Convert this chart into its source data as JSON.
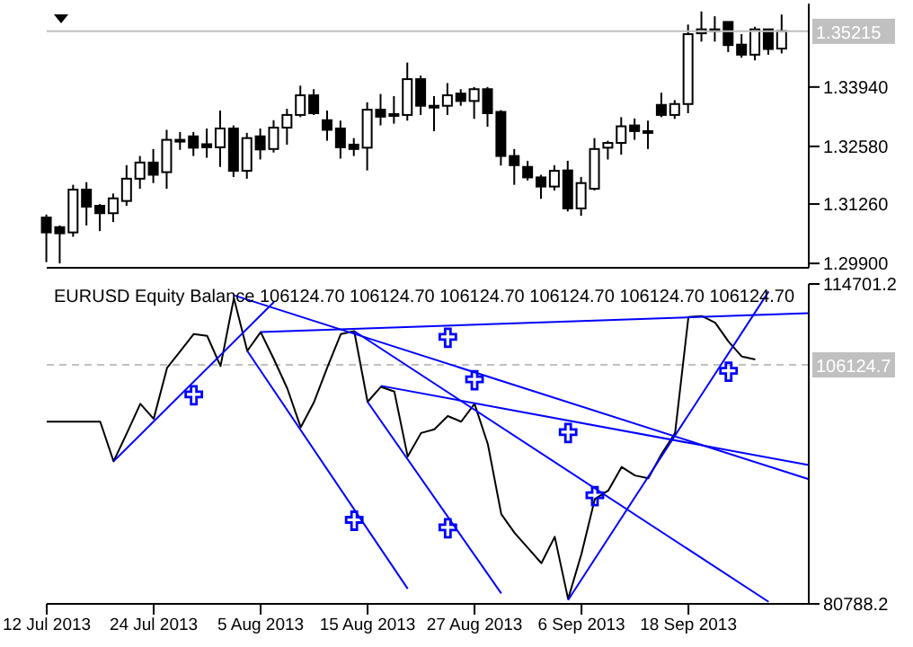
{
  "chart_data": [
    {
      "type": "candlestick",
      "color": "#000000",
      "tick_labels": "y",
      "ylim": [
        1.298,
        1.3585
      ],
      "yticks": [
        {
          "value": 1.299,
          "label": "1.29900"
        },
        {
          "value": 1.3126,
          "label": "1.31260"
        },
        {
          "value": 1.3258,
          "label": "1.32580"
        },
        {
          "value": 1.3394,
          "label": "1.33940"
        }
      ],
      "ref_lines": [
        {
          "axis": "y",
          "value": 1.35215,
          "label": "1.35215",
          "color": "#c0c0c0"
        }
      ],
      "categories": [
        null,
        null,
        null,
        null,
        null,
        null,
        null,
        null,
        null,
        null,
        null,
        null,
        null,
        null,
        null,
        null,
        null,
        null,
        null,
        null,
        null,
        null,
        null,
        null,
        null,
        null,
        null,
        null,
        null,
        null,
        null,
        null,
        null,
        null,
        null,
        null,
        null,
        null,
        null,
        null,
        null,
        null,
        null,
        null,
        null,
        null,
        null,
        null,
        null,
        null,
        null,
        null,
        null,
        null,
        null,
        null,
        null,
        null
      ],
      "ohlc": [
        [
          1.3095,
          1.3102,
          1.2993,
          1.3061
        ],
        [
          1.3073,
          1.3077,
          1.299,
          1.3059
        ],
        [
          1.3061,
          1.317,
          1.3051,
          1.3159
        ],
        [
          1.3159,
          1.3176,
          1.3077,
          1.312
        ],
        [
          1.3122,
          1.3126,
          1.3064,
          1.3105
        ],
        [
          1.3105,
          1.315,
          1.3085,
          1.3139
        ],
        [
          1.3133,
          1.3215,
          1.3122,
          1.3184
        ],
        [
          1.3184,
          1.3236,
          1.3161,
          1.3221
        ],
        [
          1.3221,
          1.3252,
          1.3174,
          1.3193
        ],
        [
          1.3199,
          1.3296,
          1.3161,
          1.3273
        ],
        [
          1.3273,
          1.3291,
          1.325,
          1.3273
        ],
        [
          1.3281,
          1.3291,
          1.3236,
          1.3255
        ],
        [
          1.3263,
          1.3299,
          1.3232,
          1.3256
        ],
        [
          1.3256,
          1.334,
          1.3211,
          1.3299
        ],
        [
          1.3299,
          1.3306,
          1.3188,
          1.3202
        ],
        [
          1.3202,
          1.3289,
          1.3184,
          1.3277
        ],
        [
          1.3281,
          1.3299,
          1.3228,
          1.3251
        ],
        [
          1.3252,
          1.3318,
          1.3244,
          1.3301
        ],
        [
          1.3301,
          1.3344,
          1.3262,
          1.333
        ],
        [
          1.333,
          1.3397,
          1.3325,
          1.3375
        ],
        [
          1.3375,
          1.3389,
          1.333,
          1.3334
        ],
        [
          1.3318,
          1.334,
          1.3271,
          1.3296
        ],
        [
          1.3299,
          1.3317,
          1.323,
          1.3256
        ],
        [
          1.3262,
          1.3277,
          1.3236,
          1.3252
        ],
        [
          1.3255,
          1.3359,
          1.3203,
          1.3342
        ],
        [
          1.3342,
          1.3378,
          1.3306,
          1.3326
        ],
        [
          1.3332,
          1.3373,
          1.331,
          1.3332
        ],
        [
          1.333,
          1.345,
          1.3317,
          1.3412
        ],
        [
          1.3412,
          1.342,
          1.333,
          1.3351
        ],
        [
          1.3351,
          1.3373,
          1.3293,
          1.3351
        ],
        [
          1.3351,
          1.3403,
          1.333,
          1.3375
        ],
        [
          1.3379,
          1.3389,
          1.3351,
          1.3362
        ],
        [
          1.3362,
          1.3394,
          1.3321,
          1.3389
        ],
        [
          1.3389,
          1.3394,
          1.3303,
          1.3334
        ],
        [
          1.3337,
          1.3341,
          1.3214,
          1.3236
        ],
        [
          1.3236,
          1.3252,
          1.317,
          1.3215
        ],
        [
          1.3211,
          1.3225,
          1.318,
          1.3187
        ],
        [
          1.3187,
          1.3193,
          1.3138,
          1.3166
        ],
        [
          1.3166,
          1.3215,
          1.3157,
          1.3202
        ],
        [
          1.3203,
          1.3225,
          1.3109,
          1.3116
        ],
        [
          1.3116,
          1.3188,
          1.3099,
          1.3174
        ],
        [
          1.3161,
          1.3277,
          1.3157,
          1.3252
        ],
        [
          1.3255,
          1.3271,
          1.3228,
          1.3266
        ],
        [
          1.3266,
          1.3325,
          1.3239,
          1.3304
        ],
        [
          1.3306,
          1.3322,
          1.3273,
          1.3293
        ],
        [
          1.3293,
          1.3317,
          1.3252,
          1.3293
        ],
        [
          1.3353,
          1.3381,
          1.3325,
          1.333
        ],
        [
          1.333,
          1.3364,
          1.3321,
          1.3355
        ],
        [
          1.3355,
          1.3537,
          1.3334,
          1.3515
        ],
        [
          1.3517,
          1.3567,
          1.3498,
          1.3526
        ],
        [
          1.3526,
          1.3556,
          1.3498,
          1.3526
        ],
        [
          1.3543,
          1.3543,
          1.3474,
          1.349
        ],
        [
          1.3491,
          1.3515,
          1.3461,
          1.3468
        ],
        [
          1.3468,
          1.3532,
          1.3455,
          1.3526
        ],
        [
          1.3526,
          1.3526,
          1.3468,
          1.3481
        ],
        [
          1.3482,
          1.356,
          1.3471,
          1.3522
        ],
        null,
        null
      ]
    },
    {
      "type": "line",
      "title": "EURUSD Equity Balance 106124.70 106124.70 106124.70 106124.70 106124.70 106124.70",
      "marker": "none",
      "ylim": [
        80788.2,
        114701.2
      ],
      "yticks": [
        80788.2,
        114701.2
      ],
      "ref_lines": [
        {
          "axis": "y",
          "value": 106124.7,
          "label": "106124.7",
          "color": "#c0c0c0",
          "line_style": "dashed"
        }
      ],
      "categories": [
        "12 Jul 2013",
        null,
        null,
        null,
        null,
        null,
        null,
        null,
        "24 Jul 2013",
        null,
        null,
        null,
        null,
        null,
        null,
        null,
        "5 Aug 2013",
        null,
        null,
        null,
        null,
        null,
        null,
        null,
        "15 Aug 2013",
        null,
        null,
        null,
        null,
        null,
        null,
        null,
        "27 Aug 2013",
        null,
        null,
        null,
        null,
        null,
        null,
        null,
        "6 Sep 2013",
        null,
        null,
        null,
        null,
        null,
        null,
        null,
        "18 Sep 2013",
        null,
        null,
        null,
        null,
        null,
        null,
        null,
        null,
        null
      ],
      "series": [
        {
          "color": "#000000",
          "values": [
            100100,
            100100,
            100100,
            100100,
            100100,
            95900,
            98900,
            102000,
            100400,
            105800,
            107600,
            109400,
            109200,
            106000,
            113200,
            107600,
            109600,
            106700,
            103600,
            99500,
            102200,
            105900,
            109400,
            109700,
            102200,
            103800,
            103300,
            96400,
            98900,
            99300,
            100700,
            100100,
            102000,
            97700,
            90300,
            88300,
            86700,
            85100,
            87900,
            81300,
            86100,
            91900,
            92800,
            95300,
            94400,
            94100,
            96700,
            98900,
            111200,
            111300,
            110600,
            108600,
            107000,
            106700,
            null,
            null,
            null,
            null
          ]
        },
        {
          "color": "#0000ff",
          "values": [
            null,
            null,
            null,
            null,
            null,
            95900,
            null,
            null,
            null,
            null,
            null,
            null,
            null,
            null,
            null,
            null,
            null,
            112800,
            null,
            null,
            null,
            null,
            null,
            null,
            null,
            null,
            null,
            null,
            null,
            null,
            null,
            null,
            null,
            null,
            null,
            null,
            null,
            null,
            null,
            null,
            null,
            null,
            null,
            null,
            null,
            null,
            null,
            null,
            null,
            null,
            null,
            null,
            null,
            null,
            null,
            null,
            null,
            null
          ]
        },
        {
          "color": "#0000ff",
          "values": [
            null,
            null,
            null,
            null,
            null,
            null,
            null,
            null,
            null,
            null,
            null,
            null,
            null,
            null,
            113500,
            null,
            null,
            null,
            null,
            null,
            null,
            null,
            null,
            null,
            null,
            null,
            null,
            null,
            null,
            null,
            null,
            null,
            null,
            null,
            null,
            null,
            null,
            null,
            null,
            null,
            null,
            null,
            null,
            null,
            null,
            null,
            null,
            null,
            null,
            null,
            null,
            null,
            null,
            null,
            null,
            null,
            null,
            94000
          ]
        },
        {
          "color": "#0000ff",
          "values": [
            null,
            null,
            null,
            null,
            null,
            null,
            null,
            null,
            null,
            null,
            null,
            null,
            null,
            null,
            null,
            107600,
            null,
            null,
            null,
            null,
            null,
            null,
            null,
            null,
            null,
            null,
            null,
            82400,
            null,
            null,
            null,
            null,
            null,
            null,
            null,
            null,
            null,
            null,
            null,
            null,
            null,
            null,
            null,
            null,
            null,
            null,
            null,
            null,
            null,
            null,
            null,
            null,
            null,
            null,
            null,
            null,
            null,
            null
          ]
        },
        {
          "color": "#0000ff",
          "values": [
            null,
            null,
            null,
            null,
            null,
            null,
            null,
            null,
            null,
            null,
            null,
            null,
            null,
            null,
            null,
            null,
            109600,
            null,
            null,
            null,
            null,
            null,
            null,
            null,
            null,
            null,
            null,
            null,
            null,
            null,
            null,
            null,
            null,
            null,
            null,
            null,
            null,
            null,
            null,
            null,
            null,
            null,
            null,
            null,
            null,
            null,
            null,
            null,
            null,
            null,
            null,
            null,
            null,
            null,
            null,
            null,
            null,
            111600
          ]
        },
        {
          "color": "#0000ff",
          "values": [
            null,
            null,
            null,
            null,
            null,
            null,
            null,
            null,
            null,
            null,
            null,
            null,
            null,
            null,
            null,
            null,
            null,
            null,
            null,
            null,
            null,
            null,
            null,
            109700,
            null,
            null,
            null,
            null,
            null,
            null,
            null,
            null,
            null,
            null,
            null,
            null,
            null,
            null,
            null,
            null,
            null,
            null,
            null,
            null,
            null,
            null,
            null,
            null,
            null,
            null,
            null,
            null,
            null,
            null,
            81000,
            null,
            null,
            null
          ]
        },
        {
          "color": "#0000ff",
          "values": [
            null,
            null,
            null,
            null,
            null,
            null,
            null,
            null,
            null,
            null,
            null,
            null,
            null,
            null,
            null,
            null,
            null,
            null,
            null,
            null,
            null,
            null,
            null,
            null,
            null,
            103900,
            null,
            null,
            null,
            null,
            null,
            null,
            null,
            null,
            null,
            null,
            null,
            null,
            null,
            null,
            null,
            null,
            null,
            null,
            null,
            null,
            null,
            null,
            null,
            null,
            null,
            null,
            null,
            null,
            null,
            null,
            null,
            95500
          ]
        },
        {
          "color": "#0000ff",
          "values": [
            null,
            null,
            null,
            null,
            null,
            null,
            null,
            null,
            null,
            null,
            null,
            null,
            null,
            null,
            null,
            null,
            null,
            null,
            null,
            null,
            null,
            null,
            null,
            null,
            102200,
            null,
            null,
            null,
            null,
            null,
            null,
            null,
            null,
            null,
            81900,
            null,
            null,
            null,
            null,
            null,
            null,
            null,
            null,
            null,
            null,
            null,
            null,
            null,
            null,
            null,
            null,
            null,
            null,
            null,
            null,
            null,
            null,
            null
          ]
        },
        {
          "color": "#0000ff",
          "values": [
            null,
            null,
            null,
            null,
            null,
            null,
            null,
            null,
            null,
            null,
            null,
            null,
            null,
            null,
            null,
            null,
            null,
            null,
            null,
            null,
            null,
            null,
            null,
            null,
            null,
            null,
            null,
            null,
            null,
            null,
            null,
            null,
            null,
            null,
            null,
            null,
            null,
            null,
            null,
            81200,
            null,
            null,
            null,
            null,
            null,
            null,
            null,
            null,
            null,
            null,
            null,
            null,
            null,
            null,
            113900,
            null,
            null,
            null
          ]
        },
        {
          "type": "scatter",
          "marker": "cross",
          "color": "#0000ff",
          "values": [
            null,
            null,
            null,
            null,
            null,
            null,
            null,
            null,
            null,
            null,
            null,
            102900,
            null,
            null,
            null,
            null,
            null,
            null,
            null,
            null,
            null,
            null,
            null,
            89600,
            null,
            null,
            null,
            null,
            null,
            null,
            109000,
            null,
            104500,
            null,
            null,
            null,
            null,
            null,
            null,
            98900,
            null,
            92200,
            null,
            null,
            null,
            null,
            null,
            null,
            null,
            null,
            null,
            105400,
            null,
            null,
            null,
            null,
            null,
            null
          ]
        },
        {
          "type": "scatter",
          "marker": "cross",
          "color": "#0000ff",
          "values": [
            null,
            null,
            null,
            null,
            null,
            null,
            null,
            null,
            null,
            null,
            null,
            null,
            null,
            null,
            null,
            null,
            null,
            null,
            null,
            null,
            null,
            null,
            null,
            null,
            null,
            null,
            null,
            null,
            null,
            null,
            88800,
            null,
            null,
            null,
            null,
            null,
            null,
            null,
            null,
            null,
            null,
            null,
            null,
            null,
            null,
            null,
            null,
            null,
            null,
            null,
            null,
            null,
            null,
            null,
            null,
            null,
            null,
            null
          ]
        }
      ]
    }
  ]
}
